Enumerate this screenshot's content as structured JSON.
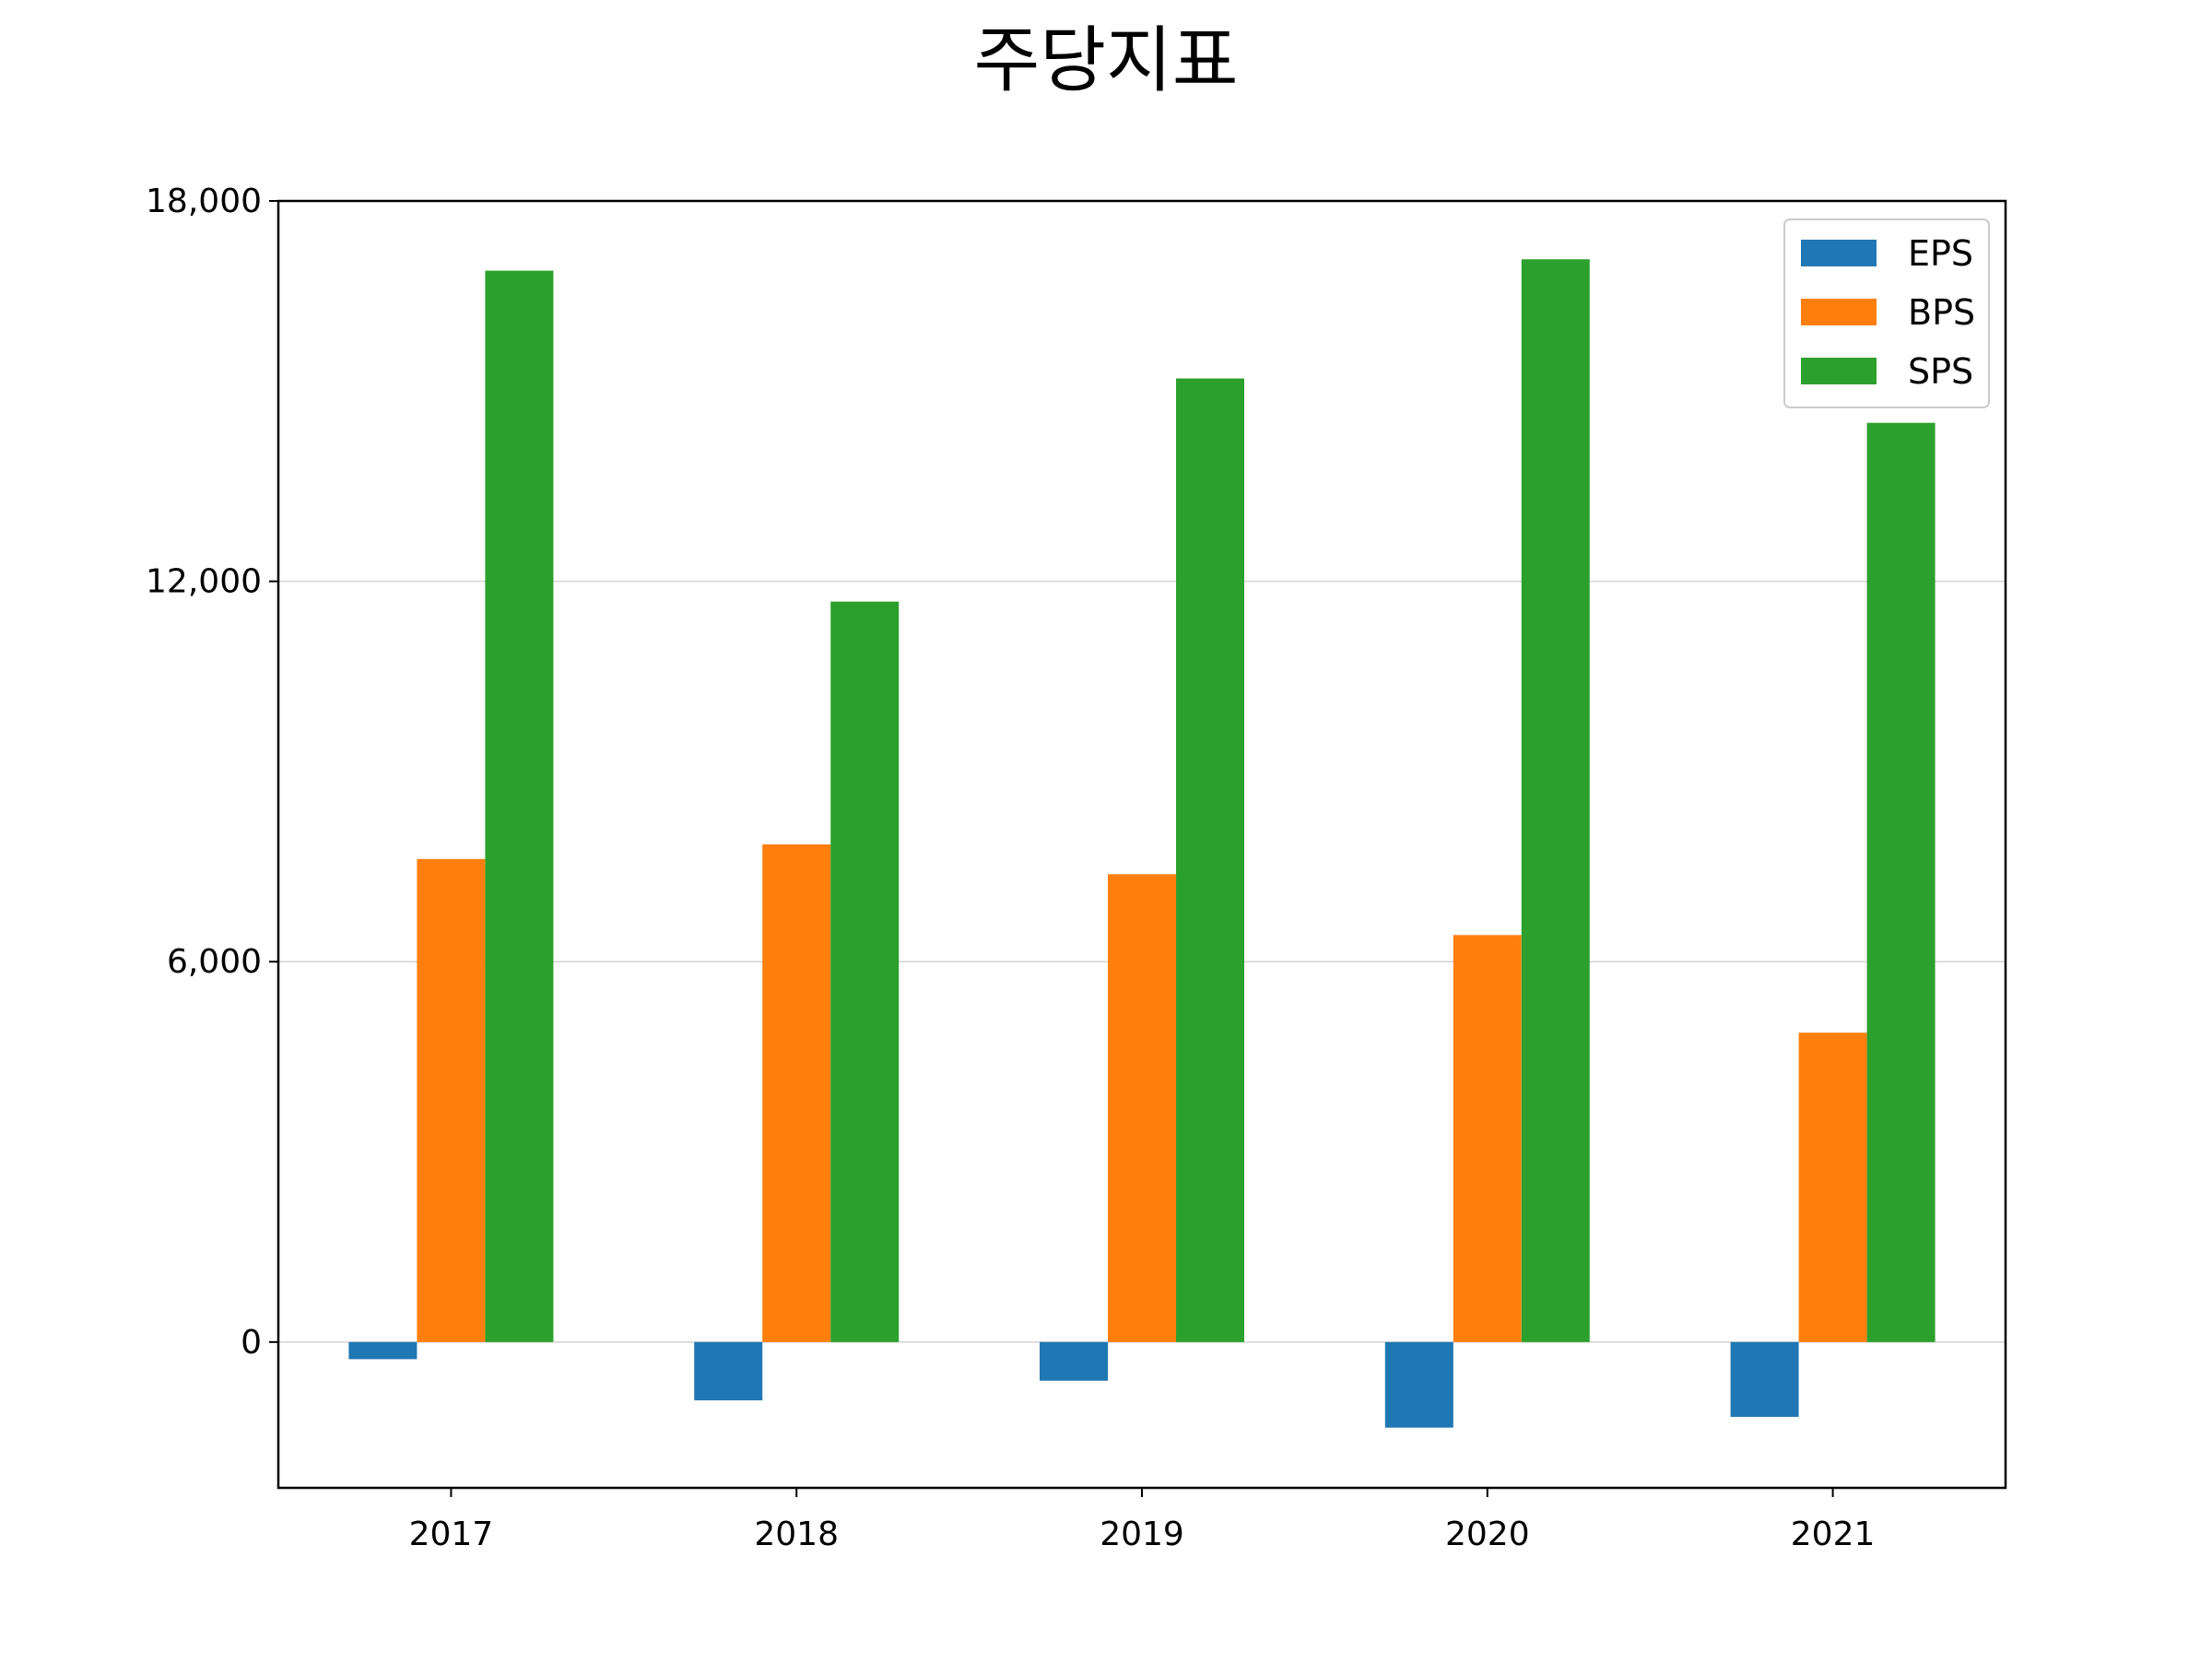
{
  "chart_data": {
    "type": "bar",
    "title": "주당지표",
    "xlabel": "",
    "ylabel": "",
    "categories": [
      "2017",
      "2018",
      "2019",
      "2020",
      "2021"
    ],
    "series": [
      {
        "name": "EPS",
        "color": "#1f77b4",
        "values": [
          -270,
          -920,
          -610,
          -1350,
          -1180
        ]
      },
      {
        "name": "BPS",
        "color": "#ff7f0e",
        "values": [
          7620,
          7850,
          7380,
          6420,
          4880
        ]
      },
      {
        "name": "SPS",
        "color": "#2ca02c",
        "values": [
          16900,
          11680,
          15200,
          17080,
          14500
        ]
      }
    ],
    "ylim": [
      -2300,
      18000
    ],
    "yticks": [
      0,
      6000,
      12000,
      18000
    ],
    "ytick_labels": [
      "0",
      "6,000",
      "12,000",
      "18,000"
    ],
    "grid": "horizontal",
    "legend": "top-right"
  }
}
